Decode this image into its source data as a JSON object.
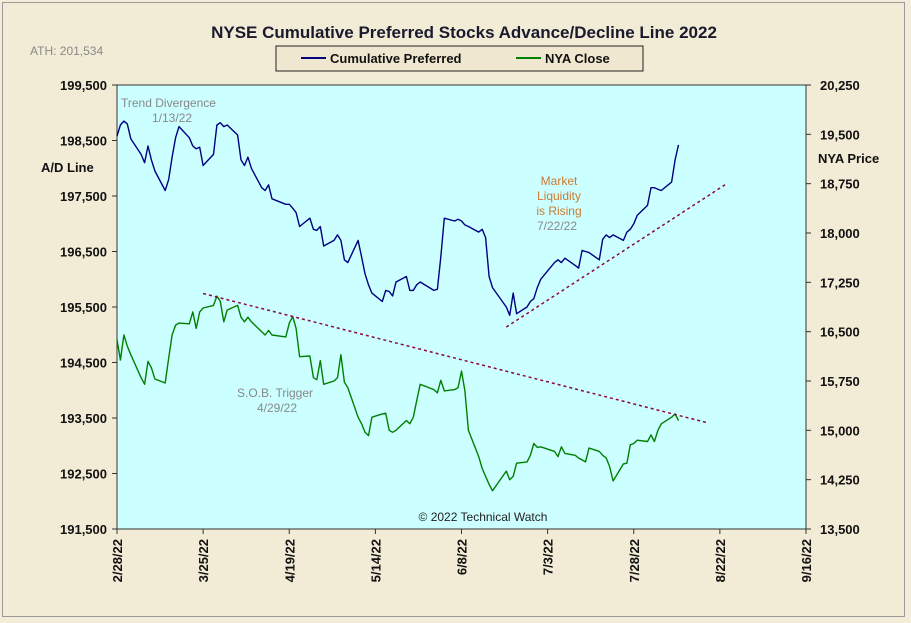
{
  "chart_data": {
    "type": "line",
    "title": "NYSE Cumulative  Preferred Stocks Advance/Decline  Line 2022",
    "ath_label": "ATH: 201,534",
    "left_axis": {
      "label": "A/D Line",
      "range": [
        191500,
        199500
      ],
      "ticks": [
        "199,500",
        "198,500",
        "197,500",
        "196,500",
        "195,500",
        "194,500",
        "193,500",
        "192,500",
        "191,500"
      ],
      "tick_values": [
        199500,
        198500,
        197500,
        196500,
        195500,
        194500,
        193500,
        192500,
        191500
      ]
    },
    "right_axis": {
      "label": "NYA Price",
      "range": [
        13500,
        20250
      ],
      "ticks": [
        "20,250",
        "19,500",
        "18,750",
        "18,000",
        "17,250",
        "16,500",
        "15,750",
        "15,000",
        "14,250",
        "13,500"
      ],
      "tick_values": [
        20250,
        19500,
        18750,
        18000,
        17250,
        16500,
        15750,
        15000,
        14250,
        13500
      ]
    },
    "x_axis": {
      "start": "2022-02-28",
      "end": "2022-09-16",
      "ticks": [
        "2/28/22",
        "3/25/22",
        "4/19/22",
        "5/14/22",
        "6/8/22",
        "7/3/22",
        "7/28/22",
        "8/22/22",
        "9/16/22"
      ],
      "tick_dates": [
        "2022-02-28",
        "2022-03-25",
        "2022-04-19",
        "2022-05-14",
        "2022-06-08",
        "2022-07-03",
        "2022-07-28",
        "2022-08-22",
        "2022-09-16"
      ]
    },
    "legend": {
      "placement": "top-center",
      "entries": [
        "Cumulative Preferred",
        "NYA Close"
      ]
    },
    "grid": false,
    "colors": {
      "plot_bg": "#ccffff",
      "ad_line": "#000080",
      "nya_line": "#008000",
      "trendline": "#8b0a3a",
      "annotation_gray": "#888888",
      "annotation_orange": "#cc7a30"
    },
    "series": [
      {
        "name": "Cumulative Preferred",
        "axis": "left",
        "points": [
          [
            "2022-02-28",
            198580
          ],
          [
            "2022-03-01",
            198780
          ],
          [
            "2022-03-02",
            198850
          ],
          [
            "2022-03-03",
            198800
          ],
          [
            "2022-03-04",
            198530
          ],
          [
            "2022-03-07",
            198250
          ],
          [
            "2022-03-08",
            198100
          ],
          [
            "2022-03-09",
            198400
          ],
          [
            "2022-03-10",
            198150
          ],
          [
            "2022-03-11",
            197950
          ],
          [
            "2022-03-14",
            197600
          ],
          [
            "2022-03-15",
            197800
          ],
          [
            "2022-03-16",
            198200
          ],
          [
            "2022-03-17",
            198550
          ],
          [
            "2022-03-18",
            198750
          ],
          [
            "2022-03-21",
            198550
          ],
          [
            "2022-03-22",
            198400
          ],
          [
            "2022-03-23",
            198350
          ],
          [
            "2022-03-24",
            198380
          ],
          [
            "2022-03-25",
            198050
          ],
          [
            "2022-03-28",
            198250
          ],
          [
            "2022-03-29",
            198780
          ],
          [
            "2022-03-30",
            198820
          ],
          [
            "2022-03-31",
            198750
          ],
          [
            "2022-04-01",
            198780
          ],
          [
            "2022-04-04",
            198600
          ],
          [
            "2022-04-05",
            198150
          ],
          [
            "2022-04-06",
            198050
          ],
          [
            "2022-04-07",
            198200
          ],
          [
            "2022-04-08",
            198000
          ],
          [
            "2022-04-11",
            197650
          ],
          [
            "2022-04-12",
            197600
          ],
          [
            "2022-04-13",
            197700
          ],
          [
            "2022-04-14",
            197450
          ],
          [
            "2022-04-18",
            197350
          ],
          [
            "2022-04-19",
            197350
          ],
          [
            "2022-04-20",
            197280
          ],
          [
            "2022-04-21",
            197200
          ],
          [
            "2022-04-22",
            196950
          ],
          [
            "2022-04-25",
            197100
          ],
          [
            "2022-04-26",
            196900
          ],
          [
            "2022-04-27",
            196880
          ],
          [
            "2022-04-28",
            196950
          ],
          [
            "2022-04-29",
            196600
          ],
          [
            "2022-05-02",
            196700
          ],
          [
            "2022-05-03",
            196800
          ],
          [
            "2022-05-04",
            196700
          ],
          [
            "2022-05-05",
            196350
          ],
          [
            "2022-05-06",
            196300
          ],
          [
            "2022-05-09",
            196700
          ],
          [
            "2022-05-10",
            196400
          ],
          [
            "2022-05-11",
            196100
          ],
          [
            "2022-05-12",
            195900
          ],
          [
            "2022-05-13",
            195750
          ],
          [
            "2022-05-16",
            195600
          ],
          [
            "2022-05-17",
            195800
          ],
          [
            "2022-05-18",
            195780
          ],
          [
            "2022-05-19",
            195700
          ],
          [
            "2022-05-20",
            195950
          ],
          [
            "2022-05-23",
            196050
          ],
          [
            "2022-05-24",
            195800
          ],
          [
            "2022-05-25",
            195800
          ],
          [
            "2022-05-26",
            195900
          ],
          [
            "2022-05-27",
            195950
          ],
          [
            "2022-05-31",
            195800
          ],
          [
            "2022-06-01",
            195820
          ],
          [
            "2022-06-02",
            196400
          ],
          [
            "2022-06-03",
            197100
          ],
          [
            "2022-06-06",
            197050
          ],
          [
            "2022-06-07",
            197080
          ],
          [
            "2022-06-08",
            197050
          ],
          [
            "2022-06-09",
            196980
          ],
          [
            "2022-06-10",
            196950
          ],
          [
            "2022-06-13",
            196850
          ],
          [
            "2022-06-14",
            196900
          ],
          [
            "2022-06-15",
            196750
          ],
          [
            "2022-06-16",
            196050
          ],
          [
            "2022-06-17",
            195850
          ],
          [
            "2022-06-21",
            195500
          ],
          [
            "2022-06-22",
            195350
          ],
          [
            "2022-06-23",
            195750
          ],
          [
            "2022-06-24",
            195380
          ],
          [
            "2022-06-27",
            195500
          ],
          [
            "2022-06-28",
            195600
          ],
          [
            "2022-06-29",
            195650
          ],
          [
            "2022-06-30",
            195850
          ],
          [
            "2022-07-01",
            196000
          ],
          [
            "2022-07-05",
            196300
          ],
          [
            "2022-07-06",
            196350
          ],
          [
            "2022-07-07",
            196300
          ],
          [
            "2022-07-08",
            196380
          ],
          [
            "2022-07-11",
            196250
          ],
          [
            "2022-07-12",
            196200
          ],
          [
            "2022-07-13",
            196520
          ],
          [
            "2022-07-14",
            196500
          ],
          [
            "2022-07-15",
            196480
          ],
          [
            "2022-07-18",
            196350
          ],
          [
            "2022-07-19",
            196720
          ],
          [
            "2022-07-20",
            196800
          ],
          [
            "2022-07-21",
            196750
          ],
          [
            "2022-07-22",
            196800
          ],
          [
            "2022-07-25",
            196700
          ],
          [
            "2022-07-26",
            196850
          ],
          [
            "2022-07-27",
            196900
          ],
          [
            "2022-07-28",
            197000
          ],
          [
            "2022-07-29",
            197150
          ],
          [
            "2022-08-01",
            197330
          ],
          [
            "2022-08-02",
            197650
          ],
          [
            "2022-08-03",
            197650
          ],
          [
            "2022-08-04",
            197620
          ],
          [
            "2022-08-05",
            197600
          ],
          [
            "2022-08-08",
            197750
          ],
          [
            "2022-08-09",
            198150
          ],
          [
            "2022-08-10",
            198420
          ]
        ]
      },
      {
        "name": "NYA Close",
        "axis": "right",
        "points": [
          [
            "2022-02-28",
            16380
          ],
          [
            "2022-03-01",
            16070
          ],
          [
            "2022-03-02",
            16450
          ],
          [
            "2022-03-03",
            16280
          ],
          [
            "2022-03-04",
            16150
          ],
          [
            "2022-03-07",
            15800
          ],
          [
            "2022-03-08",
            15700
          ],
          [
            "2022-03-09",
            16050
          ],
          [
            "2022-03-10",
            15950
          ],
          [
            "2022-03-11",
            15780
          ],
          [
            "2022-03-14",
            15720
          ],
          [
            "2022-03-15",
            16100
          ],
          [
            "2022-03-16",
            16450
          ],
          [
            "2022-03-17",
            16600
          ],
          [
            "2022-03-18",
            16630
          ],
          [
            "2022-03-21",
            16620
          ],
          [
            "2022-03-22",
            16800
          ],
          [
            "2022-03-23",
            16550
          ],
          [
            "2022-03-24",
            16800
          ],
          [
            "2022-03-25",
            16860
          ],
          [
            "2022-03-28",
            16900
          ],
          [
            "2022-03-29",
            17040
          ],
          [
            "2022-03-30",
            16960
          ],
          [
            "2022-03-31",
            16650
          ],
          [
            "2022-04-01",
            16830
          ],
          [
            "2022-04-04",
            16900
          ],
          [
            "2022-04-05",
            16720
          ],
          [
            "2022-04-06",
            16650
          ],
          [
            "2022-04-07",
            16720
          ],
          [
            "2022-04-08",
            16650
          ],
          [
            "2022-04-11",
            16500
          ],
          [
            "2022-04-12",
            16450
          ],
          [
            "2022-04-13",
            16520
          ],
          [
            "2022-04-14",
            16450
          ],
          [
            "2022-04-18",
            16420
          ],
          [
            "2022-04-19",
            16630
          ],
          [
            "2022-04-20",
            16730
          ],
          [
            "2022-04-21",
            16550
          ],
          [
            "2022-04-22",
            16120
          ],
          [
            "2022-04-25",
            16130
          ],
          [
            "2022-04-26",
            15800
          ],
          [
            "2022-04-27",
            15770
          ],
          [
            "2022-04-28",
            16060
          ],
          [
            "2022-04-29",
            15700
          ],
          [
            "2022-05-02",
            15750
          ],
          [
            "2022-05-03",
            15800
          ],
          [
            "2022-05-04",
            16150
          ],
          [
            "2022-05-05",
            15730
          ],
          [
            "2022-05-06",
            15650
          ],
          [
            "2022-05-09",
            15200
          ],
          [
            "2022-05-10",
            15100
          ],
          [
            "2022-05-11",
            14970
          ],
          [
            "2022-05-12",
            14920
          ],
          [
            "2022-05-13",
            15200
          ],
          [
            "2022-05-16",
            15250
          ],
          [
            "2022-05-17",
            15260
          ],
          [
            "2022-05-18",
            15000
          ],
          [
            "2022-05-19",
            14970
          ],
          [
            "2022-05-20",
            15000
          ],
          [
            "2022-05-23",
            15150
          ],
          [
            "2022-05-24",
            15100
          ],
          [
            "2022-05-25",
            15200
          ],
          [
            "2022-05-26",
            15450
          ],
          [
            "2022-05-27",
            15700
          ],
          [
            "2022-05-31",
            15620
          ],
          [
            "2022-06-01",
            15570
          ],
          [
            "2022-06-02",
            15760
          ],
          [
            "2022-06-03",
            15600
          ],
          [
            "2022-06-06",
            15620
          ],
          [
            "2022-06-07",
            15650
          ],
          [
            "2022-06-08",
            15900
          ],
          [
            "2022-06-09",
            15600
          ],
          [
            "2022-06-10",
            15000
          ],
          [
            "2022-06-13",
            14600
          ],
          [
            "2022-06-14",
            14420
          ],
          [
            "2022-06-15",
            14300
          ],
          [
            "2022-06-16",
            14180
          ],
          [
            "2022-06-17",
            14080
          ],
          [
            "2022-06-21",
            14380
          ],
          [
            "2022-06-22",
            14250
          ],
          [
            "2022-06-23",
            14300
          ],
          [
            "2022-06-24",
            14500
          ],
          [
            "2022-06-27",
            14520
          ],
          [
            "2022-06-28",
            14620
          ],
          [
            "2022-06-29",
            14800
          ],
          [
            "2022-06-30",
            14740
          ],
          [
            "2022-07-01",
            14750
          ],
          [
            "2022-07-05",
            14680
          ],
          [
            "2022-07-06",
            14600
          ],
          [
            "2022-07-07",
            14750
          ],
          [
            "2022-07-08",
            14650
          ],
          [
            "2022-07-11",
            14620
          ],
          [
            "2022-07-12",
            14580
          ],
          [
            "2022-07-13",
            14550
          ],
          [
            "2022-07-14",
            14520
          ],
          [
            "2022-07-15",
            14730
          ],
          [
            "2022-07-18",
            14680
          ],
          [
            "2022-07-19",
            14620
          ],
          [
            "2022-07-20",
            14580
          ],
          [
            "2022-07-21",
            14450
          ],
          [
            "2022-07-22",
            14230
          ],
          [
            "2022-07-25",
            14490
          ],
          [
            "2022-07-26",
            14500
          ],
          [
            "2022-07-27",
            14780
          ],
          [
            "2022-07-28",
            14800
          ],
          [
            "2022-07-29",
            14850
          ],
          [
            "2022-08-01",
            14830
          ],
          [
            "2022-08-02",
            14930
          ],
          [
            "2022-08-03",
            14830
          ],
          [
            "2022-08-04",
            15000
          ],
          [
            "2022-08-05",
            15100
          ],
          [
            "2022-08-08",
            15200
          ],
          [
            "2022-08-09",
            15250
          ],
          [
            "2022-08-10",
            15150
          ]
        ]
      }
    ],
    "trendlines": [
      {
        "axis": "right",
        "from": [
          "2022-03-25",
          17080
        ],
        "to": [
          "2022-08-18",
          15120
        ]
      },
      {
        "axis": "right",
        "from": [
          "2022-06-21",
          16570
        ],
        "to": [
          "2022-08-24",
          18750
        ]
      }
    ],
    "annotations": [
      {
        "lines": [
          "Trend  Divergence",
          "1/13/22"
        ],
        "color": "#888888"
      },
      {
        "lines": [
          "Market",
          "Liquidity",
          "is Rising"
        ],
        "color": "#cc7a30",
        "extra": "7/22/22"
      },
      {
        "lines": [
          "S.O.B. Trigger",
          "4/29/22"
        ],
        "color": "#888888"
      },
      {
        "lines": [
          "© 2022 Technical Watch"
        ],
        "color": "#222222"
      }
    ]
  }
}
